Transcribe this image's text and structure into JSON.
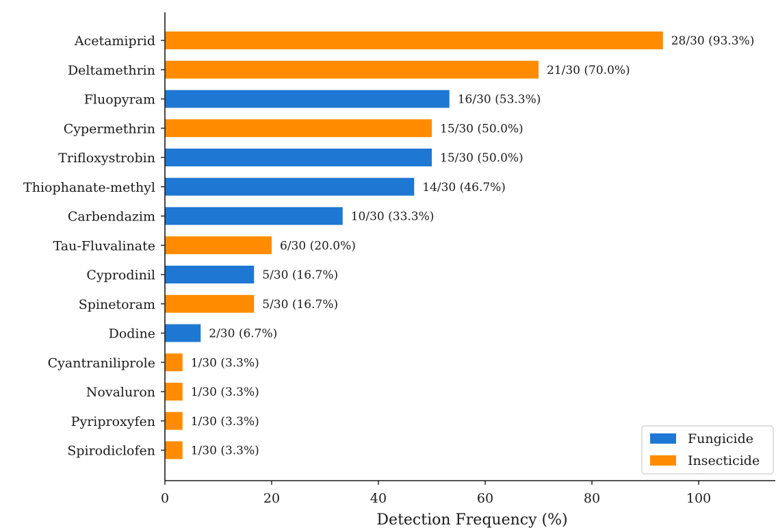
{
  "chart_data": {
    "type": "bar",
    "orientation": "horizontal",
    "title": "",
    "xlabel": "Detection Frequency (%)",
    "ylabel": "",
    "xlim": [
      0,
      115
    ],
    "xticks": [
      0,
      20,
      40,
      60,
      80,
      100
    ],
    "grid": false,
    "legend_position": "bottom-right",
    "colors": {
      "Fungicide": "#1f77d4",
      "Insecticide": "#ff8c00"
    },
    "legend": [
      {
        "name": "Fungicide",
        "color": "#1f77d4"
      },
      {
        "name": "Insecticide",
        "color": "#ff8c00"
      }
    ],
    "bars": [
      {
        "category": "Acetamiprid",
        "value": 93.3,
        "group": "Insecticide",
        "label": "28/30 (93.3%)"
      },
      {
        "category": "Deltamethrin",
        "value": 70.0,
        "group": "Insecticide",
        "label": "21/30 (70.0%)"
      },
      {
        "category": "Fluopyram",
        "value": 53.3,
        "group": "Fungicide",
        "label": "16/30 (53.3%)"
      },
      {
        "category": "Cypermethrin",
        "value": 50.0,
        "group": "Insecticide",
        "label": "15/30 (50.0%)"
      },
      {
        "category": "Trifloxystrobin",
        "value": 50.0,
        "group": "Fungicide",
        "label": "15/30 (50.0%)"
      },
      {
        "category": "Thiophanate-methyl",
        "value": 46.7,
        "group": "Fungicide",
        "label": "14/30 (46.7%)"
      },
      {
        "category": "Carbendazim",
        "value": 33.3,
        "group": "Fungicide",
        "label": "10/30 (33.3%)"
      },
      {
        "category": "Tau-Fluvalinate",
        "value": 20.0,
        "group": "Insecticide",
        "label": "6/30 (20.0%)"
      },
      {
        "category": "Cyprodinil",
        "value": 16.7,
        "group": "Fungicide",
        "label": "5/30 (16.7%)"
      },
      {
        "category": "Spinetoram",
        "value": 16.7,
        "group": "Insecticide",
        "label": "5/30 (16.7%)"
      },
      {
        "category": "Dodine",
        "value": 6.7,
        "group": "Fungicide",
        "label": "2/30 (6.7%)"
      },
      {
        "category": "Cyantraniliprole",
        "value": 3.3,
        "group": "Insecticide",
        "label": "1/30 (3.3%)"
      },
      {
        "category": "Novaluron",
        "value": 3.3,
        "group": "Insecticide",
        "label": "1/30 (3.3%)"
      },
      {
        "category": "Pyriproxyfen",
        "value": 3.3,
        "group": "Insecticide",
        "label": "1/30 (3.3%)"
      },
      {
        "category": "Spirodiclofen",
        "value": 3.3,
        "group": "Insecticide",
        "label": "1/30 (3.3%)"
      }
    ]
  }
}
